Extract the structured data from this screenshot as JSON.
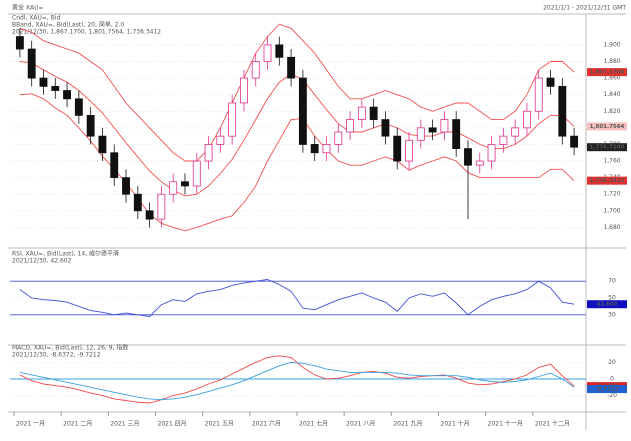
{
  "header": {
    "left": "黄金 XAU=",
    "right": "2021/1/1 - 2021/12/31 GMT"
  },
  "chart_data": [
    {
      "type": "candlestick",
      "title_lines": [
        "Cndl, XAU=, Bid",
        "BBand, XAU=, Bid(Last), 20, 简单, 2.0",
        "2021/12/30, 1,867.1700, 1,801.7564, 1,736.3412"
      ],
      "open": [
        1910,
        1895,
        1860,
        1850,
        1845,
        1835,
        1815,
        1790,
        1770,
        1740,
        1720,
        1700,
        1690,
        1720,
        1735,
        1730,
        1760,
        1780,
        1790,
        1830,
        1860,
        1880,
        1900,
        1885,
        1860,
        1780,
        1770,
        1780,
        1795,
        1810,
        1825,
        1810,
        1790,
        1760,
        1785,
        1800,
        1795,
        1810,
        1775,
        1755,
        1760,
        1780,
        1790,
        1800,
        1820,
        1860,
        1850,
        1790
      ],
      "high": [
        1920,
        1905,
        1870,
        1860,
        1855,
        1845,
        1825,
        1800,
        1780,
        1750,
        1730,
        1710,
        1730,
        1745,
        1745,
        1770,
        1790,
        1800,
        1840,
        1870,
        1890,
        1910,
        1910,
        1895,
        1870,
        1790,
        1790,
        1805,
        1820,
        1835,
        1835,
        1820,
        1800,
        1795,
        1810,
        1810,
        1820,
        1820,
        1785,
        1770,
        1790,
        1800,
        1810,
        1830,
        1870,
        1870,
        1860,
        1800
      ],
      "low": [
        1885,
        1850,
        1840,
        1835,
        1825,
        1805,
        1780,
        1760,
        1730,
        1710,
        1690,
        1680,
        1680,
        1710,
        1720,
        1720,
        1750,
        1770,
        1780,
        1820,
        1850,
        1870,
        1875,
        1850,
        1770,
        1760,
        1760,
        1770,
        1785,
        1800,
        1800,
        1780,
        1750,
        1750,
        1775,
        1785,
        1785,
        1765,
        1690,
        1745,
        1750,
        1770,
        1780,
        1790,
        1810,
        1840,
        1780,
        1767
      ],
      "close": [
        1895,
        1860,
        1850,
        1845,
        1835,
        1815,
        1790,
        1770,
        1740,
        1720,
        1700,
        1690,
        1720,
        1735,
        1730,
        1760,
        1780,
        1790,
        1830,
        1860,
        1880,
        1900,
        1885,
        1860,
        1780,
        1770,
        1780,
        1795,
        1810,
        1825,
        1810,
        1790,
        1760,
        1785,
        1800,
        1795,
        1810,
        1775,
        1755,
        1760,
        1780,
        1790,
        1800,
        1820,
        1860,
        1850,
        1790,
        1776.71
      ],
      "up_color": "#e0308a",
      "down_color": "#111111",
      "bands": [
        {
          "color": "#f05050",
          "values": [
            1920,
            1915,
            1905,
            1900,
            1895,
            1890,
            1880,
            1870,
            1850,
            1830,
            1815,
            1800,
            1785,
            1770,
            1760,
            1760,
            1775,
            1800,
            1830,
            1860,
            1890,
            1910,
            1925,
            1920,
            1905,
            1890,
            1870,
            1850,
            1835,
            1835,
            1840,
            1845,
            1840,
            1835,
            1825,
            1820,
            1825,
            1830,
            1830,
            1820,
            1810,
            1810,
            1820,
            1840,
            1870,
            1880,
            1880,
            1867.17
          ]
        },
        {
          "color": "#f05050",
          "values": [
            1880,
            1878,
            1870,
            1862,
            1855,
            1845,
            1832,
            1818,
            1800,
            1782,
            1765,
            1748,
            1735,
            1725,
            1718,
            1720,
            1730,
            1745,
            1762,
            1785,
            1810,
            1835,
            1855,
            1865,
            1858,
            1840,
            1822,
            1805,
            1795,
            1795,
            1800,
            1805,
            1800,
            1792,
            1790,
            1790,
            1795,
            1795,
            1788,
            1780,
            1775,
            1775,
            1780,
            1790,
            1805,
            1815,
            1815,
            1801.7564
          ]
        },
        {
          "color": "#f05050",
          "values": [
            1840,
            1841,
            1835,
            1824,
            1815,
            1800,
            1784,
            1766,
            1750,
            1734,
            1715,
            1696,
            1685,
            1680,
            1676,
            1680,
            1685,
            1690,
            1694,
            1710,
            1730,
            1760,
            1785,
            1810,
            1811,
            1790,
            1774,
            1760,
            1755,
            1755,
            1760,
            1765,
            1760,
            1749,
            1755,
            1760,
            1765,
            1760,
            1746,
            1740,
            1740,
            1740,
            1740,
            1740,
            1740,
            1750,
            1750,
            1736.3412
          ]
        }
      ],
      "band_value_labels": [
        "1,867.1700",
        "1,801.7564",
        "1,736.3412"
      ],
      "last_label": "1,776.7100",
      "ylim": [
        1660,
        1930
      ],
      "yticks": [
        {
          "value": 1680,
          "label": "1,680"
        },
        {
          "value": 1700,
          "label": "1,700"
        },
        {
          "value": 1720,
          "label": "1,720"
        },
        {
          "value": 1740,
          "label": "1,740"
        },
        {
          "value": 1760,
          "label": "1,760"
        },
        {
          "value": 1780,
          "label": "1,780"
        },
        {
          "value": 1800,
          "label": "1,800"
        },
        {
          "value": 1820,
          "label": "1,820"
        },
        {
          "value": 1840,
          "label": "1,840"
        },
        {
          "value": 1860,
          "label": "1,860"
        },
        {
          "value": 1880,
          "label": "1,880"
        },
        {
          "value": 1900,
          "label": "1,900"
        }
      ],
      "grid": true,
      "month_labels": [
        "2021 一月",
        "2021 二月",
        "2021 三月",
        "2021 四月",
        "2021 五月",
        "2021 六月",
        "2021 七月",
        "2021 八月",
        "2021 九月",
        "2021 十月",
        "2021 十一月",
        "2021 十二月"
      ]
    },
    {
      "type": "line",
      "title_lines": [
        "RSI, XAU=, Bid(Last), 14, 威尔德平滑",
        "2021/12/30, 42.602"
      ],
      "series": [
        {
          "color": "#4050d8",
          "values": [
            60,
            50,
            48,
            47,
            45,
            40,
            35,
            33,
            30,
            32,
            30,
            28,
            42,
            48,
            46,
            55,
            58,
            60,
            65,
            68,
            70,
            72,
            66,
            58,
            38,
            36,
            42,
            48,
            52,
            56,
            50,
            45,
            34,
            50,
            55,
            52,
            56,
            44,
            30,
            40,
            48,
            52,
            55,
            60,
            70,
            62,
            45,
            42.602
          ],
          "value_label": "42.602",
          "label_bg": "#1010c0"
        }
      ],
      "reference_lines": [
        70,
        30
      ],
      "reference_color": "#4050d8",
      "ylim": [
        0,
        100
      ],
      "yticks": [
        30,
        50,
        70
      ],
      "grid": true
    },
    {
      "type": "line",
      "title_lines": [
        "MACD, XAU=, Bid(Last), 12, 26, 9, 指数",
        "2021/12/30, -8.6372, -9.7212"
      ],
      "series": [
        {
          "color": "#f04848",
          "values": [
            5,
            -2,
            -6,
            -8,
            -10,
            -13,
            -17,
            -20,
            -24,
            -26,
            -28,
            -29,
            -25,
            -20,
            -17,
            -12,
            -6,
            -1,
            6,
            13,
            20,
            26,
            28,
            26,
            14,
            5,
            0,
            1,
            4,
            8,
            9,
            7,
            2,
            1,
            3,
            4,
            5,
            1,
            -5,
            -7,
            -6,
            -3,
            0,
            5,
            14,
            18,
            4,
            -8.6372
          ],
          "value_label": "-8.6372",
          "label_bg": "#e02020"
        },
        {
          "color": "#3aa0e0",
          "values": [
            8,
            5,
            2,
            -1,
            -4,
            -7,
            -10,
            -13,
            -16,
            -19,
            -22,
            -24,
            -25,
            -24,
            -22,
            -19,
            -15,
            -11,
            -7,
            -2,
            4,
            10,
            16,
            20,
            19,
            16,
            12,
            10,
            8,
            8,
            8,
            8,
            7,
            5,
            4,
            4,
            4,
            4,
            2,
            -1,
            -3,
            -4,
            -3,
            -1,
            3,
            7,
            0,
            -9.7212
          ],
          "value_label": "-9.7212",
          "label_bg": "#2060d0"
        }
      ],
      "reference_lines": [
        0
      ],
      "reference_color": "#3aa0e0",
      "ylim": [
        -35,
        35
      ],
      "yticks": [
        -20,
        0,
        20
      ],
      "grid": true
    }
  ]
}
